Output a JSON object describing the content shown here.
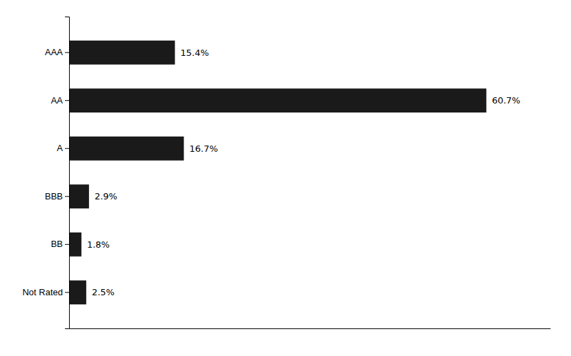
{
  "chart_data": {
    "type": "bar",
    "orientation": "horizontal",
    "categories": [
      "AAA",
      "AA",
      "A",
      "BBB",
      "BB",
      "Not Rated"
    ],
    "values": [
      15.4,
      60.7,
      16.7,
      2.9,
      1.8,
      2.5
    ],
    "value_labels": [
      "15.4%",
      "60.7%",
      "16.7%",
      "2.9%",
      "1.8%",
      "2.5%"
    ],
    "data_labels": true,
    "color": "#1a1a1a",
    "xlim": [
      0,
      70
    ],
    "tick_labels": "y",
    "grid": false
  }
}
